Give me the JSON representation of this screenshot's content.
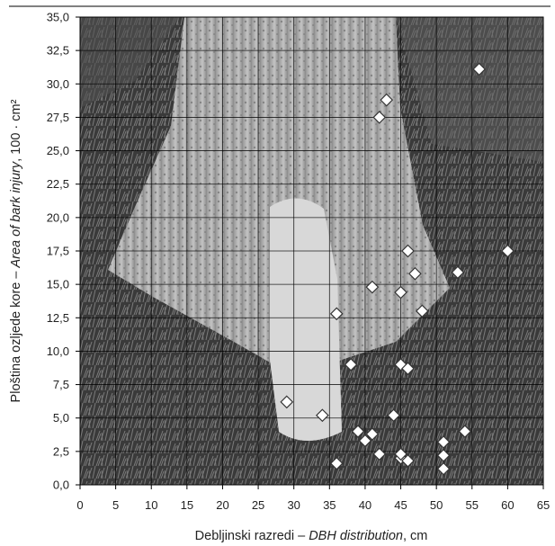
{
  "chart_data": {
    "type": "scatter",
    "title": "",
    "xlabel_plain": "Debljinski razredi – ",
    "xlabel_italic": "DBH distribution",
    "xlabel_unit": ", cm",
    "ylabel_plain": "Ploština ozljede kore – ",
    "ylabel_italic": "Area of bark injury",
    "ylabel_unit": ",  100 · cm²",
    "xlim": [
      0,
      65
    ],
    "ylim": [
      0,
      35
    ],
    "x_ticks": [
      "0",
      "5",
      "10",
      "15",
      "20",
      "25",
      "30",
      "35",
      "40",
      "45",
      "50",
      "55",
      "60",
      "65"
    ],
    "y_ticks": [
      "0,0",
      "2,5",
      "5,0",
      "7,5",
      "10,0",
      "12,5",
      "15,0",
      "17,5",
      "20,0",
      "22,5",
      "25,0",
      "27,5",
      "30,0",
      "32,5",
      "35,0"
    ],
    "grid": true,
    "background": "photograph of a tree trunk base with bark injury (grayscale)",
    "marker": "white diamond",
    "marker_color": "#ffffff",
    "marker_edge": "#333333",
    "points": [
      {
        "x": 29,
        "y": 6.2
      },
      {
        "x": 34,
        "y": 5.2
      },
      {
        "x": 36,
        "y": 1.6
      },
      {
        "x": 36,
        "y": 12.8
      },
      {
        "x": 38,
        "y": 9.0
      },
      {
        "x": 39,
        "y": 4.0
      },
      {
        "x": 40,
        "y": 3.3
      },
      {
        "x": 41,
        "y": 3.8
      },
      {
        "x": 41,
        "y": 14.8
      },
      {
        "x": 42,
        "y": 2.3
      },
      {
        "x": 42,
        "y": 27.5
      },
      {
        "x": 43,
        "y": 28.8
      },
      {
        "x": 44,
        "y": 5.2
      },
      {
        "x": 45,
        "y": 2.0
      },
      {
        "x": 45,
        "y": 2.3
      },
      {
        "x": 45,
        "y": 9.0
      },
      {
        "x": 45,
        "y": 14.4
      },
      {
        "x": 46,
        "y": 1.8
      },
      {
        "x": 46,
        "y": 8.7
      },
      {
        "x": 46,
        "y": 17.5
      },
      {
        "x": 47,
        "y": 15.8
      },
      {
        "x": 48,
        "y": 13.0
      },
      {
        "x": 51,
        "y": 1.2
      },
      {
        "x": 51,
        "y": 2.2
      },
      {
        "x": 51,
        "y": 3.2
      },
      {
        "x": 53,
        "y": 15.9
      },
      {
        "x": 54,
        "y": 4.0
      },
      {
        "x": 56,
        "y": 31.1
      },
      {
        "x": 60,
        "y": 17.5
      }
    ]
  }
}
